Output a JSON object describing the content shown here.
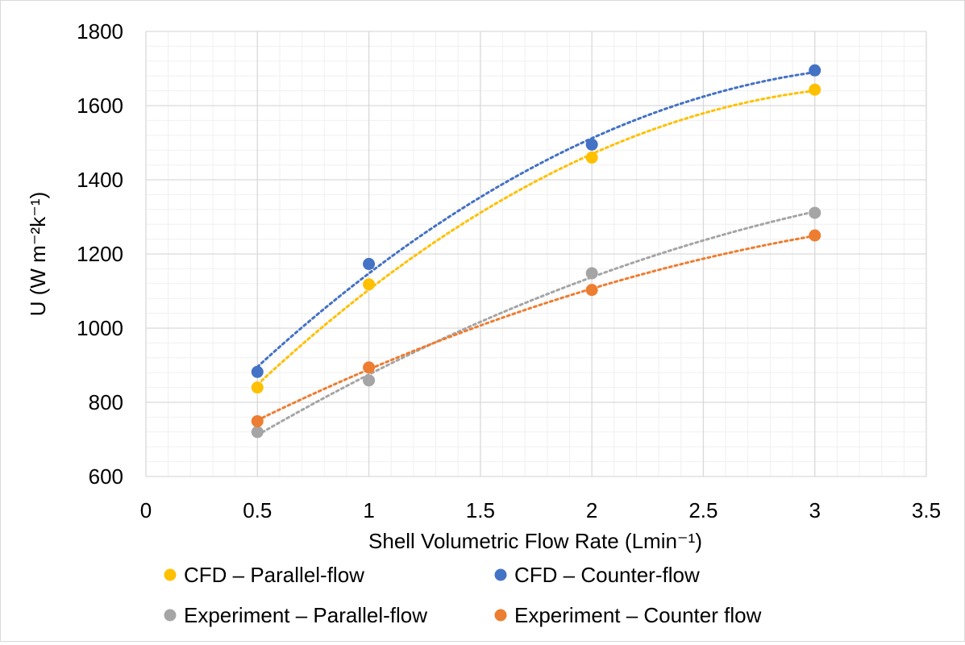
{
  "chart_data": {
    "type": "scatter",
    "title": "",
    "xlabel": "Shell Volumetric Flow Rate (Lmin⁻¹)",
    "ylabel": "U (W m⁻²k⁻¹)",
    "xlim": [
      0,
      3.5
    ],
    "ylim": [
      600,
      1800
    ],
    "x_ticks": [
      "0",
      "0.5",
      "1",
      "1.5",
      "2",
      "2.5",
      "3",
      "3.5"
    ],
    "y_ticks": [
      "600",
      "800",
      "1000",
      "1200",
      "1400",
      "1600",
      "1800"
    ],
    "grid": true,
    "minor_grid": true,
    "trendline": "polynomial (dotted)",
    "legend_position": "bottom",
    "x": [
      0.5,
      1,
      2,
      3
    ],
    "series": [
      {
        "name": "CFD – Parallel-flow",
        "color": "#FFC000",
        "values": [
          840,
          1118,
          1460,
          1643
        ]
      },
      {
        "name": "CFD – Counter-flow",
        "color": "#4472C4",
        "values": [
          882,
          1173,
          1495,
          1695
        ]
      },
      {
        "name": "Experiment – Parallel-flow",
        "color": "#A5A5A5",
        "values": [
          720,
          859,
          1148,
          1311
        ]
      },
      {
        "name": "Experiment – Counter flow",
        "color": "#ED7D31",
        "values": [
          749,
          894,
          1103,
          1250
        ]
      }
    ]
  }
}
